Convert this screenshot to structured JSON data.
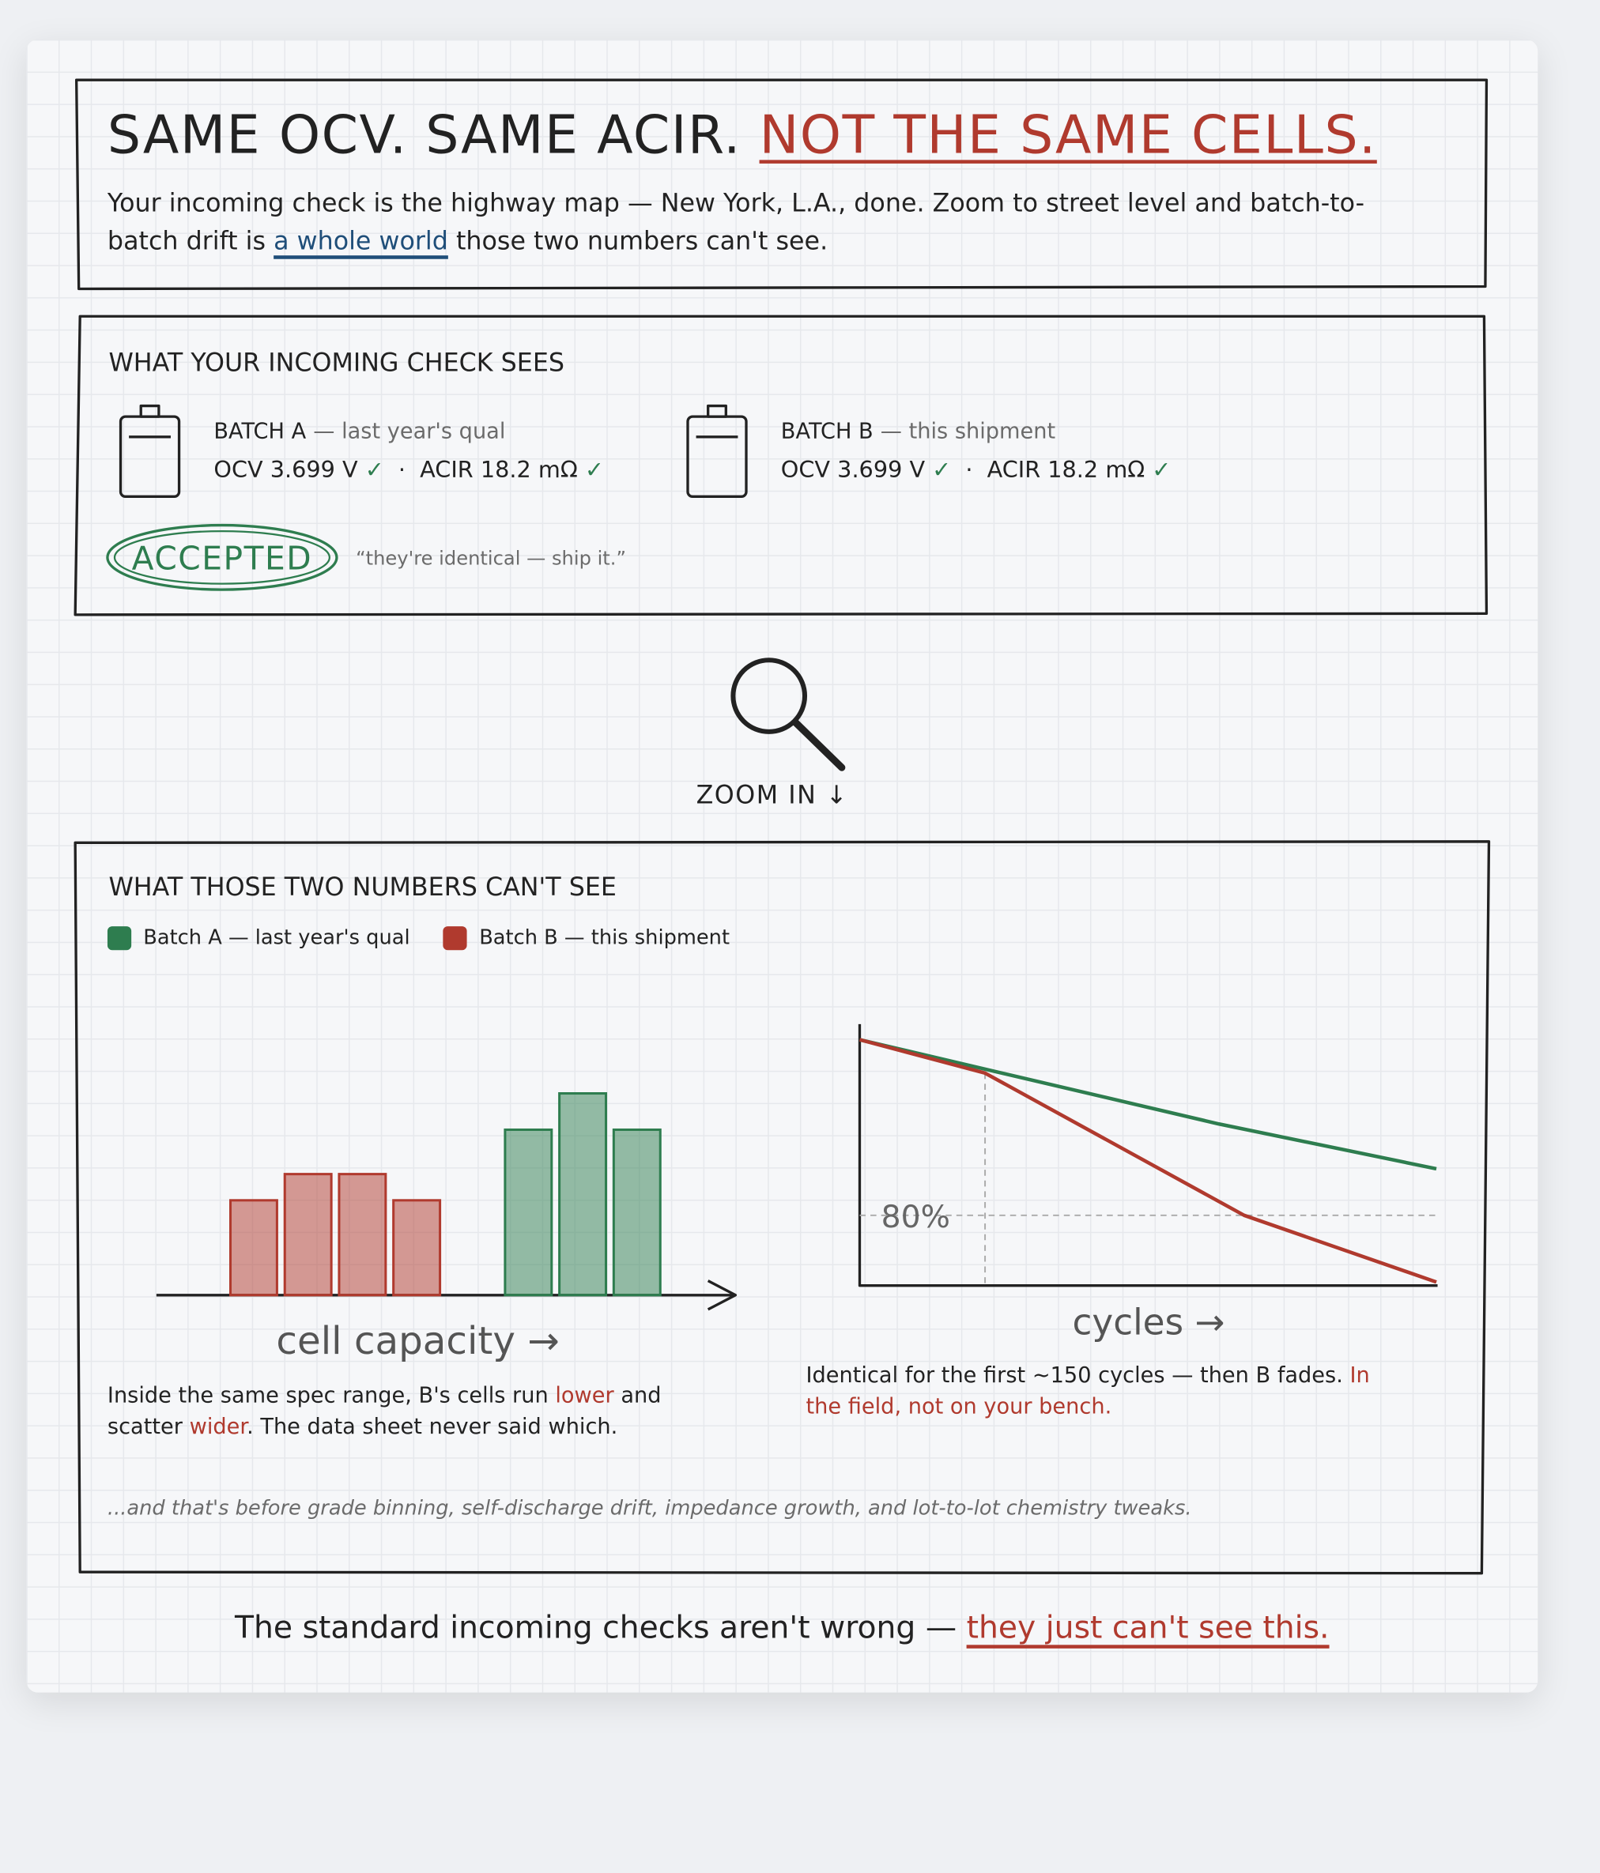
{
  "header": {
    "title_lead": "SAME OCV. SAME ACIR.",
    "title_emphasis": "NOT THE SAME CELLS.",
    "subtitle_line1": "Your incoming check is the highway map — New York, L.A., done. Zoom to street level and batch-to-",
    "subtitle_before_link": "batch drift is",
    "subtitle_link": "a whole world",
    "subtitle_after_link": "those two numbers can't see."
  },
  "incoming_check": {
    "heading": "WHAT YOUR INCOMING CHECK SEES",
    "check": "✓",
    "separator": "·",
    "batches": [
      {
        "name": "BATCH A",
        "note": "— last year's qual",
        "ocv": "OCV 3.699 V",
        "acir": "ACIR 18.2 mΩ"
      },
      {
        "name": "BATCH B",
        "note": "— this shipment",
        "ocv": "OCV 3.699 V",
        "acir": "ACIR 18.2 mΩ"
      }
    ],
    "stamp": "ACCEPTED",
    "quote": "“they're identical — ship it.”"
  },
  "zoom_label": "ZOOM IN ↓",
  "chart_data": [
    {
      "type": "bar",
      "heading": "WHAT THOSE TWO NUMBERS CAN'T SEE",
      "xlabel": "cell capacity →",
      "series": [
        {
          "name": "Batch A — last year's qual",
          "color": "#2e7d4f",
          "values": [
            82,
            100,
            82
          ]
        },
        {
          "name": "Batch B — this shipment",
          "color": "#b03a2e",
          "values": [
            47,
            60,
            60,
            47
          ]
        }
      ],
      "caption": [
        "Inside the same spec range, B's cells run ",
        "lower",
        " and",
        "scatter ",
        "wider",
        ". The data sheet never said which."
      ]
    },
    {
      "type": "line",
      "xlabel": "cycles →",
      "xlim": [
        0,
        690
      ],
      "ylim": [
        72,
        101.5
      ],
      "reference_line": {
        "value": 80,
        "label": "80%"
      },
      "series": [
        {
          "name": "Batch A — last year's qual",
          "color": "#2e7d4f",
          "x": [
            0,
            430,
            690
          ],
          "values": [
            100,
            90.4,
            85.3
          ]
        },
        {
          "name": "Batch B — this shipment",
          "color": "#b03a2e",
          "x": [
            0,
            150,
            460,
            690
          ],
          "values": [
            100,
            96.2,
            80,
            72.4
          ]
        }
      ],
      "caption": [
        "Identical for the first ~150 cycles — then B fades.",
        "In",
        "the field, not on your bench."
      ]
    }
  ],
  "footnote": "...and that's before grade binning, self-discharge drift, impedance growth, and lot-to-lot chemistry tweaks.",
  "closing_lead": "The standard incoming checks aren't wrong —",
  "closing_emphasis": "they just can't see this."
}
